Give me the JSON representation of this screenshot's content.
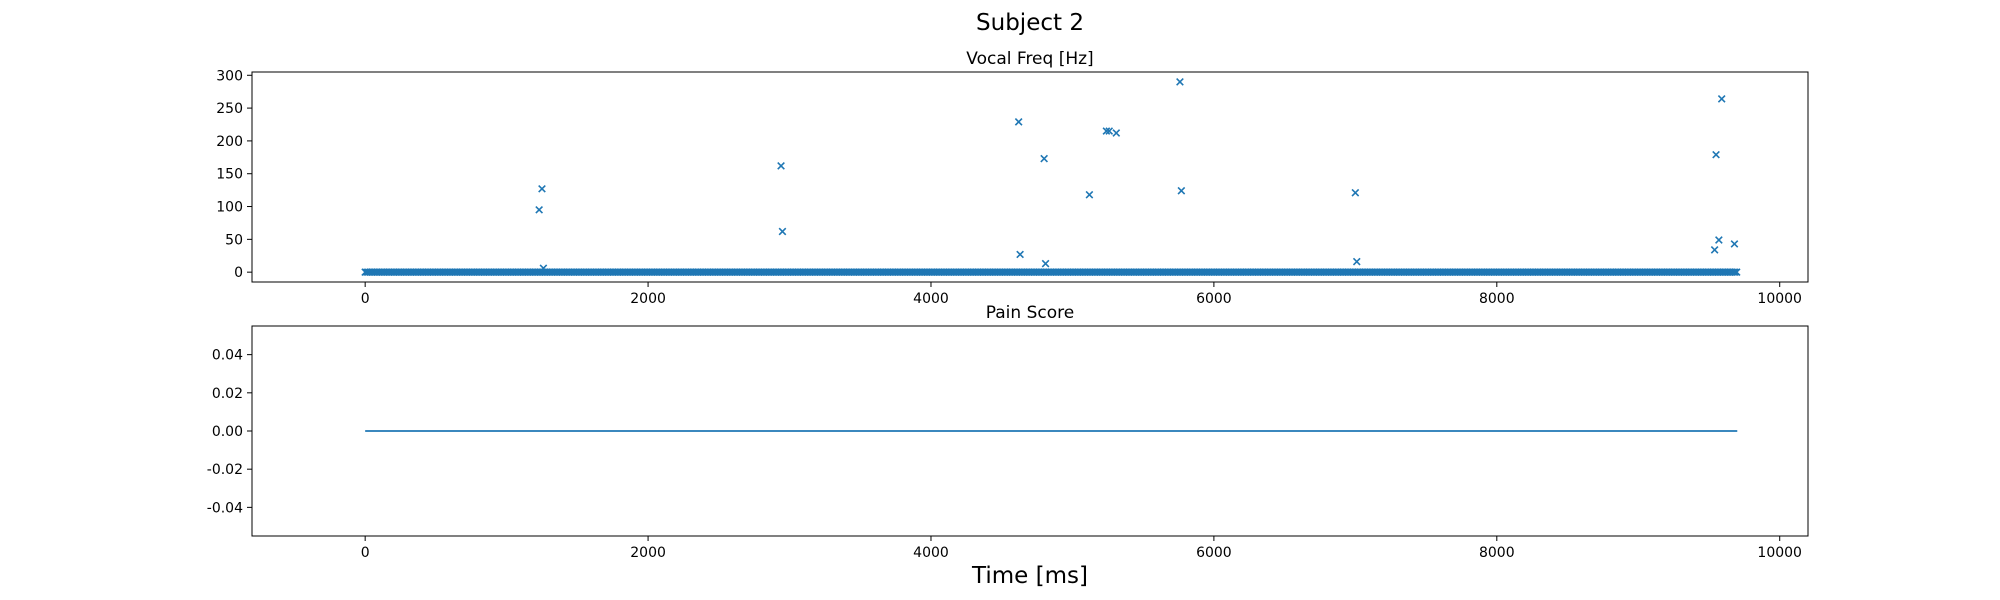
{
  "figure": {
    "suptitle": "Subject 2",
    "xlabel": "Time [ms]"
  },
  "chart_data": [
    {
      "type": "scatter",
      "title": "Vocal Freq [Hz]",
      "marker": "x",
      "color": "#1f77b4",
      "xlim": [
        -800,
        10200
      ],
      "ylim": [
        -15,
        305
      ],
      "xticks": [
        0,
        2000,
        4000,
        6000,
        8000,
        10000
      ],
      "yticks": [
        0,
        50,
        100,
        150,
        200,
        250,
        300
      ],
      "baseline": {
        "value": 0,
        "x_start": 0,
        "x_end": 9700,
        "step": 12,
        "gap_at": [
          1230,
          2940,
          5130,
          5250,
          7000,
          9550,
          9600,
          9660
        ]
      },
      "points": [
        [
          1230,
          95
        ],
        [
          1250,
          127
        ],
        [
          1260,
          6
        ],
        [
          2940,
          162
        ],
        [
          2950,
          62
        ],
        [
          4620,
          229
        ],
        [
          4630,
          27
        ],
        [
          4800,
          173
        ],
        [
          4810,
          13
        ],
        [
          5120,
          118
        ],
        [
          5240,
          215
        ],
        [
          5260,
          215
        ],
        [
          5310,
          212
        ],
        [
          5760,
          290
        ],
        [
          5770,
          124
        ],
        [
          7000,
          121
        ],
        [
          7010,
          16
        ],
        [
          9540,
          34
        ],
        [
          9550,
          179
        ],
        [
          9570,
          49
        ],
        [
          9590,
          264
        ],
        [
          9680,
          43
        ]
      ]
    },
    {
      "type": "line",
      "title": "Pain Score",
      "color": "#1f77b4",
      "xlim": [
        -800,
        10200
      ],
      "ylim": [
        -0.055,
        0.055
      ],
      "xticks": [
        0,
        2000,
        4000,
        6000,
        8000,
        10000
      ],
      "yticks": [
        -0.04,
        -0.02,
        0.0,
        0.02,
        0.04
      ],
      "ytick_decimals": 2,
      "x": [
        0,
        9700
      ],
      "y": [
        0,
        0
      ]
    }
  ]
}
